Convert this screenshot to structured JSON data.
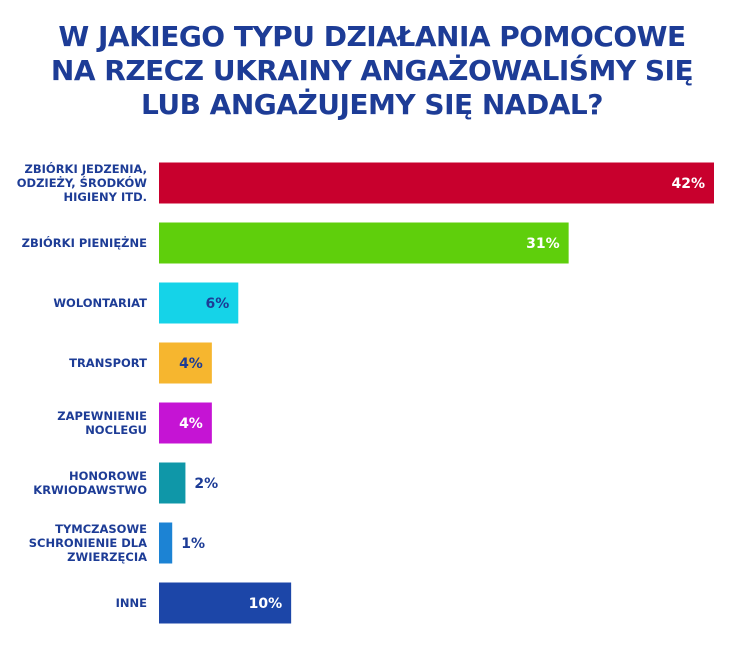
{
  "chart_data": {
    "type": "bar",
    "orientation": "horizontal",
    "title_lines": [
      "W JAKIEGO TYPU DZIAŁANIA POMOCOWE",
      "NA RZECZ UKRAINY ANGAŻOWALIŚMY SIĘ",
      "LUB ANGAŻUJEMY SIĘ NADAL?"
    ],
    "unit": "%",
    "xlim": [
      0,
      42
    ],
    "grid": false,
    "legend": "none",
    "categories": [
      [
        "ZBIÓRKI JEDZENIA,",
        "ODZIEŻY, ŚRODKÓW",
        "HIGIENY ITD."
      ],
      [
        "ZBIÓRKI PIENIĘŻNE"
      ],
      [
        "WOLONTARIAT"
      ],
      [
        "TRANSPORT"
      ],
      [
        "ZAPEWNIENIE",
        "NOCLEGU"
      ],
      [
        "HONOROWE",
        "KRWIODAWSTWO"
      ],
      [
        "TYMCZASOWE",
        "SCHRONIENIE DLA",
        "ZWIERZĘCIA"
      ],
      [
        "INNE"
      ]
    ],
    "values": [
      42,
      31,
      6,
      4,
      4,
      2,
      1,
      10
    ],
    "value_labels": [
      "42%",
      "31%",
      "6%",
      "4%",
      "4%",
      "2%",
      "1%",
      "10%"
    ],
    "colors": [
      "#c8002d",
      "#5fcf0c",
      "#15d3e8",
      "#f6b62f",
      "#c514d4",
      "#0f97a8",
      "#1c83d4",
      "#1c46a8"
    ],
    "label_color": "#1d3c96",
    "value_label_colors": [
      "#ffffff",
      "#ffffff",
      "#1d3c96",
      "#1d3c96",
      "#ffffff",
      "#1d3c96",
      "#1d3c96",
      "#ffffff"
    ],
    "value_label_inside": [
      true,
      true,
      true,
      true,
      true,
      false,
      false,
      true
    ]
  }
}
